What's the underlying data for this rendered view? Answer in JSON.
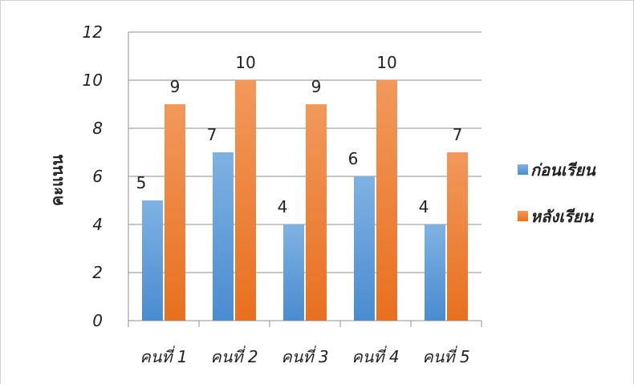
{
  "chart_data": {
    "type": "bar",
    "title": "",
    "xlabel": "",
    "ylabel": "คะแนน",
    "ylim": [
      0,
      12
    ],
    "yticks": [
      0,
      2,
      4,
      6,
      8,
      10,
      12
    ],
    "grid": true,
    "legend_position": "right",
    "categories": [
      "คนที่ 1",
      "คนที่ 2",
      "คนที่ 3",
      "คนที่ 4",
      "คนที่ 5"
    ],
    "series": [
      {
        "name": "ก่อนเรียน",
        "values": [
          5,
          7,
          4,
          6,
          4
        ],
        "color": "#5B9BD5"
      },
      {
        "name": "หลังเรียน",
        "values": [
          9,
          10,
          9,
          10,
          7
        ],
        "color": "#ED7D31"
      }
    ]
  }
}
